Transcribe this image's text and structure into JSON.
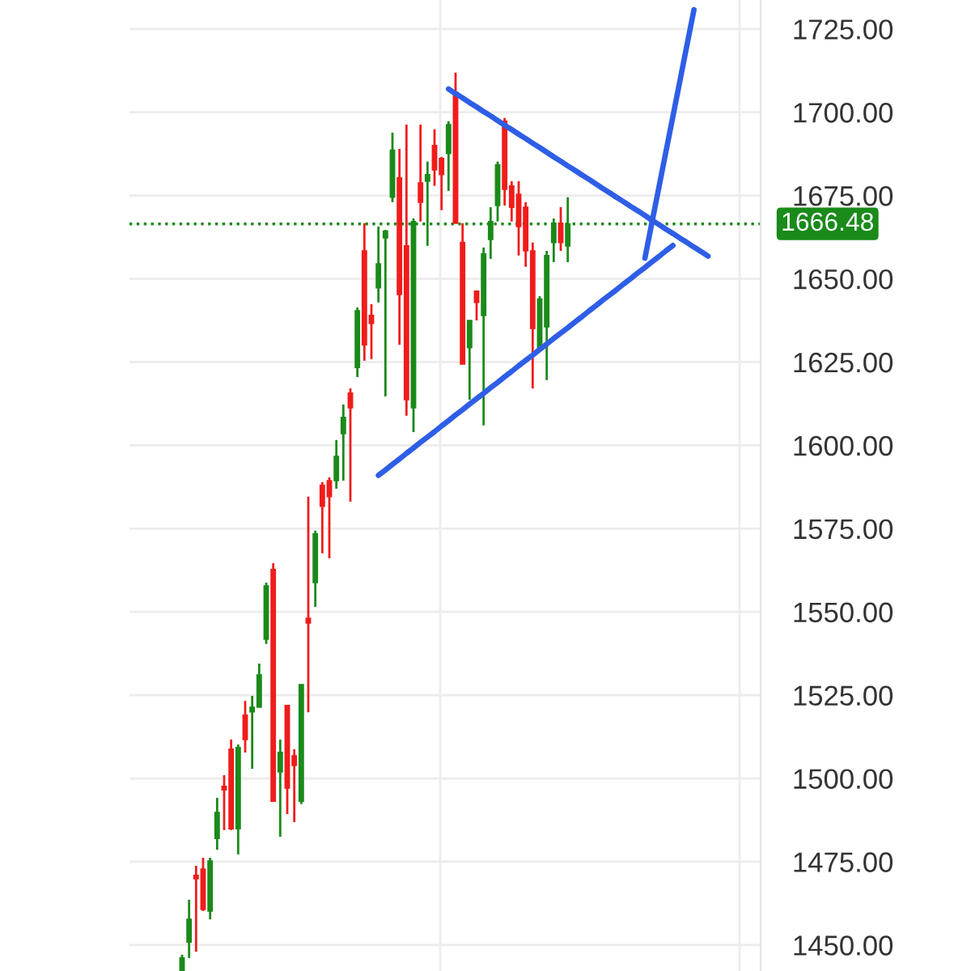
{
  "chart_data": {
    "type": "candlestick",
    "categories": [
      null,
      null,
      null,
      null,
      null,
      null,
      null,
      null,
      null,
      null,
      null,
      null,
      null,
      null,
      null,
      null,
      null,
      null,
      null,
      null,
      null,
      null,
      null,
      null,
      null,
      null,
      null,
      null,
      null,
      null,
      null,
      null,
      null,
      null,
      null,
      null,
      null,
      null,
      null,
      null,
      null,
      null,
      null,
      null,
      null,
      null,
      null,
      null,
      null,
      null,
      null,
      null,
      null,
      null,
      null,
      null,
      null,
      null,
      null,
      null,
      null,
      null,
      null,
      null,
      null,
      null,
      null,
      null,
      null,
      null,
      null,
      null,
      null,
      null,
      null,
      null,
      null,
      null,
      null,
      null,
      null,
      null,
      null,
      null,
      null,
      null,
      null,
      null,
      null,
      null
    ],
    "ohlc": [
      null,
      null,
      null,
      null,
      null,
      null,
      null,
      [
        1442.3,
        1447.1,
        1442.3,
        1446.1
      ],
      [
        1450.9,
        1463.6,
        1446.1,
        1457.7
      ],
      [
        1470.9,
        1473.8,
        1448.0,
        1469.9
      ],
      [
        1472.8,
        1476.2,
        1460.2,
        1460.7
      ],
      [
        1460.2,
        1476.2,
        1457.7,
        1475.2
      ],
      [
        1482.0,
        1494.2,
        1478.6,
        1489.8
      ],
      [
        1497.6,
        1501.0,
        1484.5,
        1496.6
      ],
      [
        1508.8,
        1511.7,
        1484.5,
        1484.9
      ],
      [
        1484.9,
        1510.2,
        1477.2,
        1509.3
      ],
      [
        1519.0,
        1523.3,
        1507.8,
        1511.7
      ],
      [
        1520.0,
        1524.8,
        1502.9,
        1521.4
      ],
      [
        1521.4,
        1534.5,
        1521.4,
        1531.1
      ],
      [
        1541.8,
        1558.8,
        1540.4,
        1557.8
      ],
      [
        1562.7,
        1564.6,
        1493.2,
        1493.2
      ],
      [
        1502.0,
        1511.7,
        1482.5,
        1507.8
      ],
      [
        1521.9,
        1521.9,
        1489.3,
        1497.1
      ],
      [
        1506.8,
        1508.8,
        1486.9,
        1503.9
      ],
      [
        1493.2,
        1528.2,
        1492.3,
        1528.2
      ],
      [
        1548.1,
        1584.6,
        1519.9,
        1546.7
      ],
      [
        1558.8,
        1574.4,
        1551.5,
        1573.4
      ],
      [
        1588.0,
        1589.0,
        1567.6,
        1581.7
      ],
      [
        1589.4,
        1590.4,
        1566.1,
        1584.6
      ],
      [
        1589.4,
        1601.6,
        1587.0,
        1596.7
      ],
      [
        1603.5,
        1612.3,
        1589.4,
        1608.4
      ],
      [
        1615.7,
        1617.1,
        1583.1,
        1611.3
      ],
      [
        1623.4,
        1641.4,
        1620.5,
        1640.4
      ],
      [
        1658.4,
        1666.7,
        1625.4,
        1630.2
      ],
      [
        1639.0,
        1642.4,
        1625.9,
        1636.6
      ],
      [
        1647.3,
        1665.7,
        1642.9,
        1654.5
      ],
      [
        1662.3,
        1664.7,
        1614.7,
        1664.3
      ],
      [
        1674.5,
        1693.9,
        1673.0,
        1688.6
      ],
      [
        1680.3,
        1689.0,
        1630.2,
        1645.3
      ],
      [
        1659.9,
        1696.3,
        1608.9,
        1613.7
      ],
      [
        1611.3,
        1668.1,
        1604.0,
        1667.2
      ],
      [
        1678.8,
        1696.3,
        1667.2,
        1673.0
      ],
      [
        1679.3,
        1685.2,
        1659.9,
        1681.3
      ],
      [
        1690.0,
        1694.9,
        1677.9,
        1682.7
      ],
      [
        1686.1,
        1686.6,
        1670.6,
        1681.3
      ],
      [
        1687.6,
        1697.3,
        1676.4,
        1696.3
      ],
      [
        1706.0,
        1711.9,
        1666.7,
        1666.7
      ],
      [
        1660.9,
        1666.7,
        1624.4,
        1624.4
      ],
      [
        1629.3,
        1637.5,
        1613.7,
        1637.5
      ],
      [
        1646.3,
        1646.3,
        1637.5,
        1642.9
      ],
      [
        1639.0,
        1659.4,
        1606.0,
        1657.5
      ],
      [
        1661.8,
        1671.5,
        1656.0,
        1667.2
      ],
      [
        1672.0,
        1685.2,
        1667.2,
        1684.2
      ],
      [
        1697.3,
        1698.3,
        1672.0,
        1676.9
      ],
      [
        1677.9,
        1679.3,
        1667.2,
        1671.5
      ],
      [
        1675.4,
        1679.3,
        1657.0,
        1665.7
      ],
      [
        1671.5,
        1673.0,
        1653.6,
        1658.4
      ],
      [
        1658.4,
        1660.9,
        1617.1,
        1635.1
      ],
      [
        1629.3,
        1644.8,
        1628.3,
        1643.9
      ],
      [
        1635.6,
        1658.4,
        1619.6,
        1657.0
      ],
      [
        1660.9,
        1668.1,
        1655.0,
        1666.7
      ],
      [
        1666.7,
        1671.5,
        1658.4,
        1660.9
      ],
      [
        1659.9,
        1674.5,
        1655.0,
        1666.48
      ],
      null,
      null,
      null,
      null,
      null,
      null,
      null,
      null,
      null,
      null,
      null,
      null,
      null,
      null,
      null,
      null,
      null,
      null,
      null,
      null,
      null,
      null,
      null,
      null,
      null,
      null,
      null
    ],
    "colors": [
      null,
      null,
      null,
      null,
      null,
      null,
      null,
      "#1a8a1a",
      "#1a8a1a",
      "#f01c1c",
      "#f01c1c",
      "#1a8a1a",
      "#1a8a1a",
      "#f01c1c",
      "#f01c1c",
      "#1a8a1a",
      "#f01c1c",
      "#1a8a1a",
      "#1a8a1a",
      "#1a8a1a",
      "#f01c1c",
      "#1a8a1a",
      "#f01c1c",
      "#f01c1c",
      "#1a8a1a",
      "#f01c1c",
      "#1a8a1a",
      "#f01c1c",
      "#f01c1c",
      "#1a8a1a",
      "#1a8a1a",
      "#f01c1c",
      "#1a8a1a",
      "#f01c1c",
      "#f01c1c",
      "#1a8a1a",
      "#1a8a1a",
      "#1a8a1a",
      "#f01c1c",
      "#f01c1c",
      "#1a8a1a",
      "#f01c1c",
      "#1a8a1a",
      "#f01c1c",
      "#f01c1c",
      "#1a8a1a",
      "#f01c1c",
      "#f01c1c",
      "#1a8a1a",
      "#f01c1c",
      "#1a8a1a",
      "#1a8a1a",
      "#1a8a1a",
      "#f01c1c",
      "#f01c1c",
      "#f01c1c",
      "#f01c1c",
      "#f01c1c",
      "#1a8a1a",
      "#1a8a1a",
      "#1a8a1a",
      "#f01c1c",
      "#1a8a1a",
      null,
      null,
      null,
      null,
      null,
      null,
      null,
      null,
      null,
      null,
      null,
      null,
      null,
      null,
      null,
      null,
      null,
      null,
      null,
      null,
      null,
      null,
      null,
      null,
      null,
      null,
      null
    ],
    "series": [
      {
        "type": "line",
        "color": "#2f5ee6",
        "values": [
          null,
          null,
          null,
          null,
          null,
          null,
          null,
          null,
          null,
          null,
          null,
          null,
          null,
          null,
          null,
          null,
          null,
          null,
          null,
          null,
          null,
          null,
          null,
          null,
          null,
          null,
          null,
          null,
          null,
          null,
          null,
          null,
          null,
          null,
          null,
          null,
          null,
          null,
          null,
          null,
          null,
          null,
          null,
          null,
          null,
          1707.0,
          1705.6,
          1704.3,
          1702.9,
          1701.6,
          1700.2,
          1698.9,
          1697.5,
          1696.1,
          1694.8,
          1693.4,
          1692.1,
          1690.7,
          1689.4,
          1688.0,
          1686.6,
          1685.3,
          1683.9,
          1682.6,
          1681.2,
          1679.9,
          1678.5,
          1677.1,
          1675.8,
          1674.4,
          1673.1,
          1671.7,
          1670.4,
          1669.0,
          1667.6,
          1666.3,
          1664.9,
          1663.6,
          1662.2,
          1660.9,
          1659.5,
          1658.2,
          1656.8,
          null,
          null,
          null,
          null,
          null,
          null,
          null
        ]
      },
      {
        "type": "line",
        "color": "#2f5ee6",
        "values": [
          null,
          null,
          null,
          null,
          null,
          null,
          null,
          null,
          null,
          null,
          null,
          null,
          null,
          null,
          null,
          null,
          null,
          null,
          null,
          null,
          null,
          null,
          null,
          null,
          null,
          null,
          null,
          null,
          null,
          null,
          null,
          null,
          null,
          null,
          null,
          1591.0,
          1592.6,
          1594.3,
          1595.9,
          1597.6,
          1599.2,
          1600.9,
          1602.5,
          1604.1,
          1605.8,
          1607.4,
          1609.1,
          1610.7,
          1612.4,
          1614.0,
          1615.6,
          1617.3,
          1618.9,
          1620.6,
          1622.2,
          1623.9,
          1625.5,
          1627.1,
          1628.8,
          1630.4,
          1632.1,
          1633.7,
          1635.3,
          1637.0,
          1638.6,
          1640.3,
          1641.9,
          1643.6,
          1645.2,
          1646.8,
          1648.5,
          1650.1,
          1651.8,
          1653.4,
          1655.1,
          1656.7,
          1658.4,
          1660.0,
          null,
          null,
          null,
          null,
          null,
          null,
          null,
          null,
          null,
          null,
          null,
          null
        ]
      },
      {
        "type": "line",
        "color": "#2f5ee6",
        "values": [
          null,
          null,
          null,
          null,
          null,
          null,
          null,
          null,
          null,
          null,
          null,
          null,
          null,
          null,
          null,
          null,
          null,
          null,
          null,
          null,
          null,
          null,
          null,
          null,
          null,
          null,
          null,
          null,
          null,
          null,
          null,
          null,
          null,
          null,
          null,
          null,
          null,
          null,
          null,
          null,
          null,
          null,
          null,
          null,
          null,
          null,
          null,
          null,
          null,
          null,
          null,
          null,
          null,
          null,
          null,
          null,
          null,
          null,
          null,
          null,
          null,
          null,
          null,
          null,
          null,
          null,
          null,
          null,
          null,
          null,
          null,
          null,
          null,
          1656.2,
          1666.9,
          1677.5,
          1688.2,
          1698.8,
          1709.5,
          1720.2,
          1730.8,
          null,
          null,
          null,
          null,
          null,
          null,
          null,
          null,
          null
        ]
      }
    ],
    "ref_lines": [
      {
        "axis": "y",
        "value": 1666.48,
        "label": "1666.48",
        "color": "#1a8a1a",
        "line_style": "dotted"
      }
    ],
    "ylim": [
      1442.2,
      1733.7
    ],
    "yticks": [
      {
        "value": 1450,
        "label": "1450.00"
      },
      {
        "value": 1475,
        "label": "1475.00"
      },
      {
        "value": 1500,
        "label": "1500.00"
      },
      {
        "value": 1525,
        "label": "1525.00"
      },
      {
        "value": 1550,
        "label": "1550.00"
      },
      {
        "value": 1575,
        "label": "1575.00"
      },
      {
        "value": 1600,
        "label": "1600.00"
      },
      {
        "value": 1625,
        "label": "1625.00"
      },
      {
        "value": 1650,
        "label": "1650.00"
      },
      {
        "value": 1675,
        "label": "1675.00"
      },
      {
        "value": 1700,
        "label": "1700.00"
      },
      {
        "value": 1725,
        "label": "1725.00"
      }
    ],
    "tick_labels": "y",
    "grid": true
  }
}
